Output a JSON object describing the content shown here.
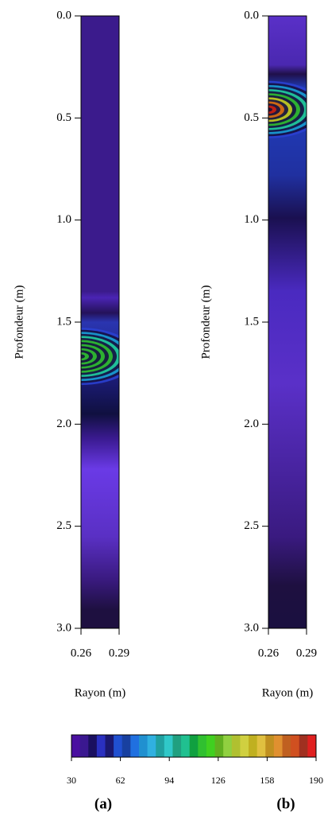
{
  "chart_data": [
    {
      "type": "heatmap",
      "label": "(a)",
      "ylabel": "Profondeur (m)",
      "xlabel": "Rayon (m)",
      "xlim": [
        0.26,
        0.29
      ],
      "xticks": [
        0.26,
        0.29
      ],
      "ylim": [
        0,
        3
      ],
      "yticks": [
        {
          "value": 0,
          "label": "0.0"
        },
        0.5,
        {
          "value": 1,
          "label": "1.0"
        },
        1.5,
        {
          "value": 2,
          "label": "2.0"
        },
        2.5,
        {
          "value": 3,
          "label": "3.0"
        }
      ]
    },
    {
      "type": "heatmap",
      "label": "(b)",
      "ylabel": "Profondeur (m)",
      "xlabel": "Rayon (m)",
      "xlim": [
        0.26,
        0.29
      ],
      "xticks": [
        0.26,
        0.29
      ],
      "ylim": [
        0,
        3
      ],
      "yticks": [
        {
          "value": 0,
          "label": "0.0"
        },
        0.5,
        {
          "value": 1,
          "label": "1.0"
        },
        1.5,
        {
          "value": 2,
          "label": "2.0"
        },
        2.5,
        {
          "value": 3,
          "label": "3.0"
        }
      ]
    }
  ],
  "colorbar": {
    "lim": [
      30,
      190
    ],
    "ticks": [
      30,
      62,
      94,
      126,
      158,
      190
    ]
  }
}
